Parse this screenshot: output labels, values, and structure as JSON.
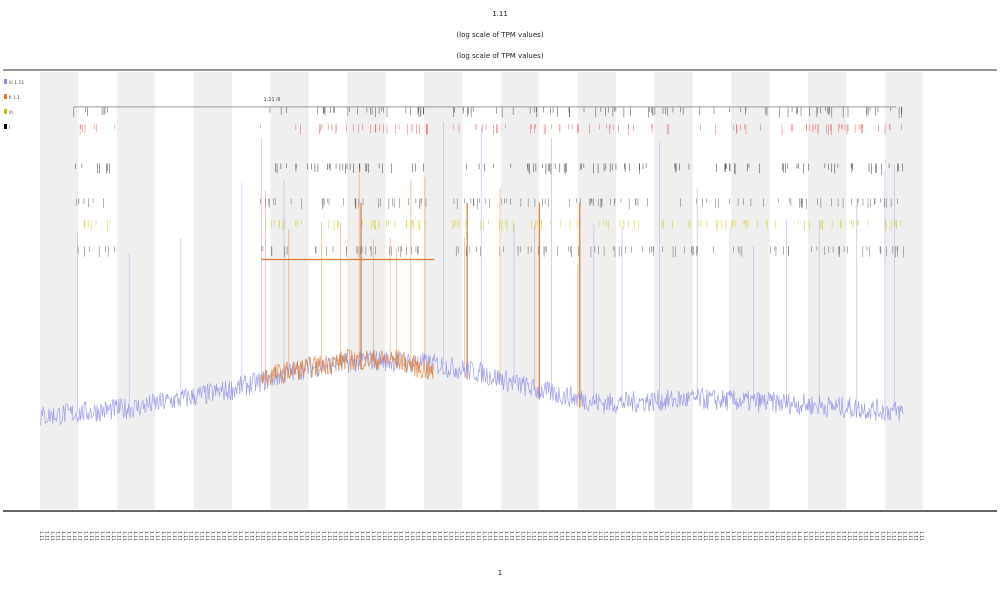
{
  "chart_data": {
    "type": "line",
    "title": "1.11",
    "subtitle_lines": [
      "(log scale of TPM values)",
      "(log scale of TPM values)"
    ],
    "xlabel": "1",
    "ylabel": "",
    "xlim": [
      0,
      980
    ],
    "ylim": [
      0,
      1
    ],
    "grid": false,
    "shaded_band_count": 12,
    "legend": {
      "placement": "top-left",
      "entries": [
        {
          "label": "lll 1.11",
          "color": "#8f8fe6"
        },
        {
          "label": "ll 1.1",
          "color": "#e07a30"
        },
        {
          "label": "lll",
          "color": "#c8b800"
        },
        {
          "label": "l",
          "color": "#000000"
        }
      ]
    },
    "annotation": "1.11 lll",
    "series": [
      {
        "name": "lll 1.11",
        "color": "#8f8fe6",
        "x": [
          0,
          100,
          200,
          236,
          280,
          350,
          420,
          470,
          530,
          600,
          700,
          800,
          920
        ],
        "y": [
          0.21,
          0.23,
          0.27,
          0.29,
          0.32,
          0.34,
          0.33,
          0.31,
          0.27,
          0.24,
          0.25,
          0.24,
          0.22
        ]
      },
      {
        "name": "ll 1.1",
        "color": "#e07a30",
        "x": [
          236,
          280,
          330,
          380,
          420
        ],
        "y": [
          0.3,
          0.32,
          0.34,
          0.34,
          0.31
        ]
      }
    ],
    "spikes": {
      "orange": [
        240,
        265,
        300,
        320,
        340,
        355,
        373,
        380,
        395,
        410,
        452,
        490,
        527,
        573
      ],
      "orange_tall": [
        342,
        455,
        532,
        575
      ],
      "purple": [
        40,
        95,
        150,
        215,
        236,
        260,
        430,
        470,
        505,
        545,
        590,
        620,
        660,
        700,
        735,
        760,
        795,
        830,
        870,
        900,
        910
      ]
    },
    "orange_line_level": 0.57,
    "orange_line_range": [
      236,
      420
    ],
    "top_line_level": 0.92,
    "top_line_range": [
      36,
      912
    ],
    "tick_rows_y": [
      0.92,
      0.88,
      0.79,
      0.71,
      0.66,
      0.6
    ],
    "tick_clusters": [
      [
        36,
        80
      ],
      [
        234,
        420
      ],
      [
        440,
        580
      ],
      [
        585,
        920
      ]
    ],
    "x_tick_labels": [
      "1.11",
      "1.11",
      "1.11"
    ],
    "x_tick_label_count": 160
  }
}
